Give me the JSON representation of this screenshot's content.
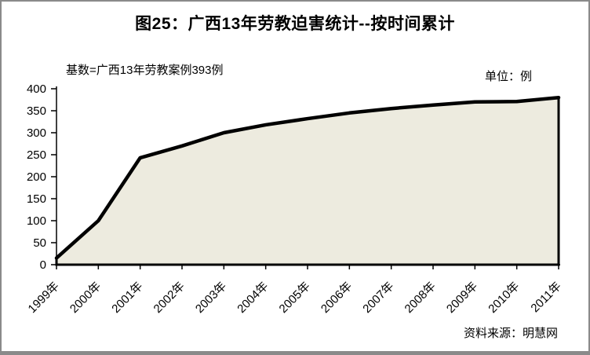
{
  "chart": {
    "title": "图25：广西13年劳教迫害统计--按时间累计",
    "subtitle": "基数=广西13年劳教案例393例",
    "unit_label": "单位：例",
    "source": "资料来源：明慧网"
  },
  "chart_data": {
    "type": "area",
    "title": "图25：广西13年劳教迫害统计--按时间累计",
    "subtitle": "基数=广西13年劳教案例393例",
    "unit": "例",
    "source": "资料来源：明慧网",
    "categories": [
      "1999年",
      "2000年",
      "2001年",
      "2002年",
      "2003年",
      "2004年",
      "2005年",
      "2006年",
      "2007年",
      "2008年",
      "2009年",
      "2010年",
      "2011年"
    ],
    "values": [
      15,
      100,
      243,
      270,
      300,
      318,
      332,
      345,
      355,
      363,
      370,
      371,
      380
    ],
    "xlabel": "",
    "ylabel": "",
    "ylim": [
      0,
      400
    ],
    "ytick_step": 50,
    "grid": false,
    "legend_position": "none",
    "x_label_rotation": -45,
    "colors": {
      "area_fill": "#EDEBDF",
      "line": "#000000",
      "axis": "#000000",
      "text": "#000000",
      "frame_border": "#8A8A8A"
    }
  }
}
